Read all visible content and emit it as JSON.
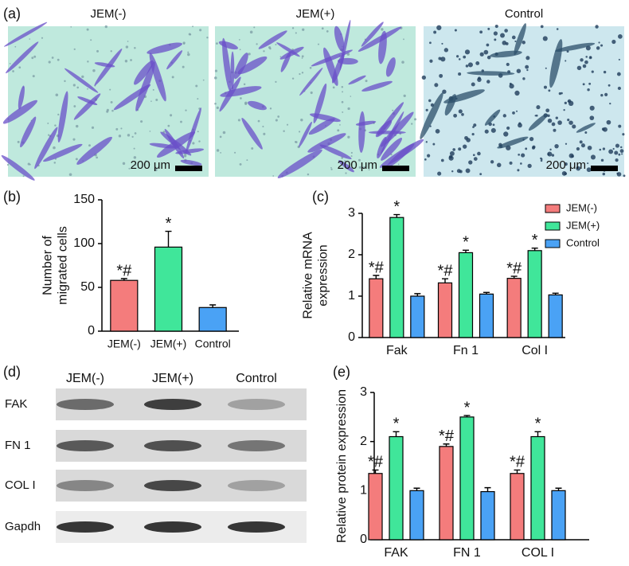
{
  "figure": {
    "panel_labels": [
      "(a)",
      "(b)",
      "(c)",
      "(d)",
      "(e)"
    ],
    "micrographs": {
      "titles": [
        "JEM(-)",
        "JEM(+)",
        "Control"
      ],
      "scale_bars": [
        "200 μm",
        "200 μm",
        "200 μm"
      ]
    },
    "blot": {
      "columns": [
        "JEM(-)",
        "JEM(+)",
        "Control"
      ],
      "rows": [
        "FAK",
        "FN 1",
        "COL I",
        "Gapdh"
      ]
    }
  },
  "chart_data": [
    {
      "type": "bar",
      "ylabel": [
        "Number of",
        "migrated cells"
      ],
      "categories": [
        "JEM(-)",
        "JEM(+)",
        "Control"
      ],
      "values": [
        58,
        96,
        27
      ],
      "errors": [
        2,
        18,
        3
      ],
      "colors": [
        "#f47c7c",
        "#40e69a",
        "#4aa2f5"
      ],
      "significance": [
        "*#",
        "*",
        null
      ],
      "ylim": [
        0,
        150
      ],
      "yticks": [
        0,
        50,
        100,
        150
      ]
    },
    {
      "type": "grouped-bar",
      "ylabel": [
        "Relative mRNA",
        "expression"
      ],
      "categories": [
        "Fak",
        "Fn 1",
        "Col I"
      ],
      "series": [
        {
          "name": "JEM(-)",
          "color": "#f47c7c",
          "values": [
            1.42,
            1.32,
            1.43
          ],
          "errors": [
            0.08,
            0.1,
            0.05
          ],
          "significance": [
            "*#",
            "*#",
            "*#"
          ]
        },
        {
          "name": "JEM(+)",
          "color": "#40e69a",
          "values": [
            2.9,
            2.05,
            2.1
          ],
          "errors": [
            0.07,
            0.06,
            0.06
          ],
          "significance": [
            "*",
            "*",
            "*"
          ]
        },
        {
          "name": "Control",
          "color": "#4aa2f5",
          "values": [
            1.0,
            1.05,
            1.03
          ],
          "errors": [
            0.06,
            0.04,
            0.04
          ]
        }
      ],
      "ylim": [
        0,
        3
      ],
      "yticks": [
        0,
        1,
        2,
        3
      ],
      "legend": "top-right"
    },
    {
      "type": "grouped-bar",
      "ylabel": [
        "Relative protein expression"
      ],
      "categories": [
        "FAK",
        "FN 1",
        "COL I"
      ],
      "series": [
        {
          "values": [
            1.35,
            1.9,
            1.35
          ],
          "errors": [
            0.07,
            0.05,
            0.07
          ],
          "color": "#f47c7c",
          "significance": [
            "*#",
            "*#",
            "*#"
          ]
        },
        {
          "values": [
            2.1,
            2.5,
            2.1
          ],
          "errors": [
            0.1,
            0.03,
            0.1
          ],
          "color": "#40e69a",
          "significance": [
            "*",
            "*",
            "*"
          ]
        },
        {
          "values": [
            1.0,
            0.98,
            1.0
          ],
          "errors": [
            0.05,
            0.08,
            0.05
          ],
          "color": "#4aa2f5"
        }
      ],
      "ylim": [
        0,
        3
      ],
      "yticks": [
        0,
        1,
        2,
        3
      ]
    }
  ]
}
